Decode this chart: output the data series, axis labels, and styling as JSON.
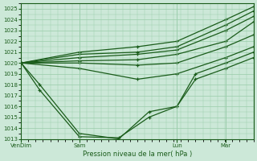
{
  "xlabel": "Pression niveau de la mer( hPa )",
  "bg_color": "#cce8d8",
  "grid_color": "#99ccaa",
  "line_color": "#1a5c1a",
  "ylim": [
    1013,
    1025.5
  ],
  "ytick_min": 1013,
  "ytick_max": 1026,
  "xtick_labels": [
    "VenDim",
    "Sam",
    "Lun",
    "Mar"
  ],
  "xtick_positions": [
    0,
    0.25,
    0.67,
    0.88
  ],
  "lines": [
    {
      "x": [
        0.0,
        0.25,
        0.5,
        0.67,
        0.88,
        1.0
      ],
      "y": [
        1020.0,
        1021.0,
        1021.5,
        1022.0,
        1024.0,
        1025.2
      ]
    },
    {
      "x": [
        0.0,
        0.25,
        0.5,
        0.67,
        0.88,
        1.0
      ],
      "y": [
        1020.0,
        1020.8,
        1021.0,
        1021.5,
        1023.5,
        1024.8
      ]
    },
    {
      "x": [
        0.0,
        0.25,
        0.5,
        0.67,
        0.88,
        1.0
      ],
      "y": [
        1020.0,
        1020.5,
        1020.8,
        1021.2,
        1023.0,
        1024.3
      ]
    },
    {
      "x": [
        0.0,
        0.25,
        0.5,
        0.67,
        0.88,
        1.0
      ],
      "y": [
        1020.0,
        1020.2,
        1020.3,
        1020.8,
        1022.0,
        1023.8
      ]
    },
    {
      "x": [
        0.0,
        0.25,
        0.5,
        0.67,
        0.88,
        1.0
      ],
      "y": [
        1020.0,
        1020.0,
        1019.8,
        1020.0,
        1021.5,
        1022.6
      ]
    },
    {
      "x": [
        0.0,
        0.25,
        0.5,
        0.67,
        0.88,
        1.0
      ],
      "y": [
        1020.0,
        1019.5,
        1018.5,
        1019.0,
        1020.5,
        1021.5
      ]
    },
    {
      "x": [
        0.0,
        0.08,
        0.25,
        0.42,
        0.55,
        0.67,
        0.75,
        0.88,
        1.0
      ],
      "y": [
        1020.0,
        1018.0,
        1013.5,
        1013.0,
        1015.5,
        1016.0,
        1019.0,
        1020.0,
        1021.0
      ]
    },
    {
      "x": [
        0.0,
        0.08,
        0.25,
        0.42,
        0.55,
        0.67,
        0.75,
        0.88,
        1.0
      ],
      "y": [
        1020.0,
        1017.5,
        1013.2,
        1013.1,
        1015.0,
        1016.0,
        1018.5,
        1019.5,
        1020.5
      ]
    }
  ]
}
